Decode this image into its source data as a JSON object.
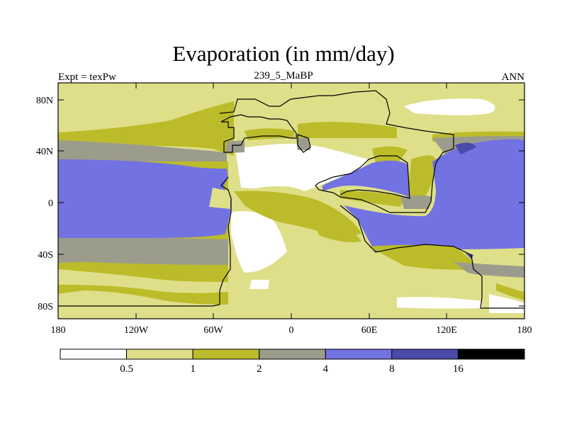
{
  "title": "Evaporation (in mm/day)",
  "subtitle_left": "Expt = texPw",
  "subtitle_center": "239_5_MaBP",
  "subtitle_right": "ANN",
  "lat_ticks": [
    "80N",
    "40N",
    "0",
    "40S",
    "80S"
  ],
  "lon_ticks": [
    "180",
    "120W",
    "60W",
    "0",
    "60E",
    "120E",
    "180"
  ],
  "colorbar": {
    "colors": [
      "#ffffff",
      "#dfdf8a",
      "#bcbc2a",
      "#9c9c8c",
      "#7272e2",
      "#4a4aa8",
      "#000000"
    ],
    "labels": [
      "0.5",
      "1",
      "2",
      "4",
      "8",
      "16"
    ]
  },
  "colors": {
    "c0": "#ffffff",
    "c1": "#dfdf8a",
    "c2": "#bcbc2a",
    "c3": "#9c9c8c",
    "c4": "#7272e2",
    "c5": "#4a4aa8"
  }
}
